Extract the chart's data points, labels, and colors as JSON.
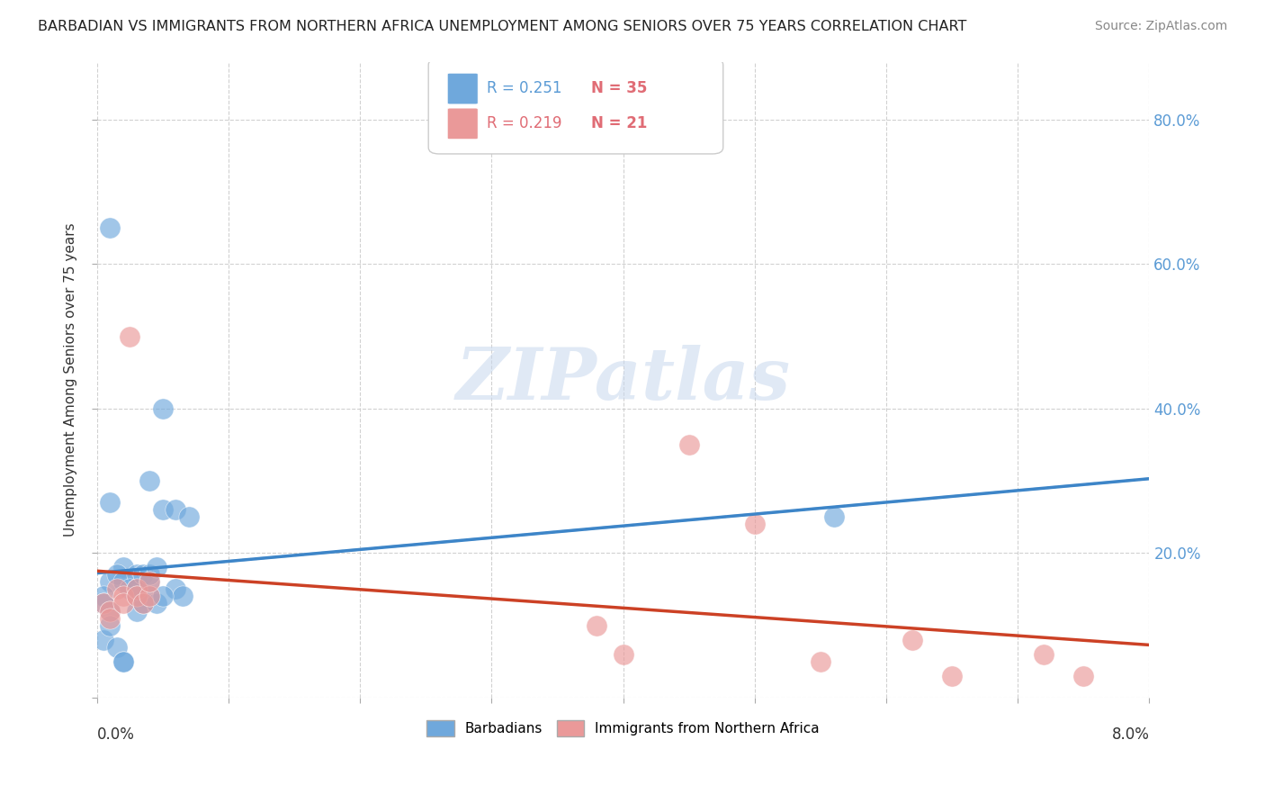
{
  "title": "BARBADIAN VS IMMIGRANTS FROM NORTHERN AFRICA UNEMPLOYMENT AMONG SENIORS OVER 75 YEARS CORRELATION CHART",
  "source": "Source: ZipAtlas.com",
  "ylabel": "Unemployment Among Seniors over 75 years",
  "right_yticks": [
    "80.0%",
    "60.0%",
    "40.0%",
    "20.0%"
  ],
  "right_ytick_vals": [
    0.8,
    0.6,
    0.4,
    0.2
  ],
  "xlim": [
    0.0,
    0.08
  ],
  "ylim": [
    0.0,
    0.88
  ],
  "legend_r1": "R = 0.251",
  "legend_n1": "N = 35",
  "legend_r2": "R = 0.219",
  "legend_n2": "N = 21",
  "barbadian_color": "#6fa8dc",
  "barbadian_line_color": "#3d85c8",
  "barbadian_dash_color": "#9fc5e8",
  "immigrant_color": "#ea9999",
  "immigrant_line_color": "#cc4125",
  "background_color": "#ffffff",
  "grid_color": "#cccccc",
  "watermark": "ZIPatlas",
  "barbadian_x": [
    0.001,
    0.004,
    0.001,
    0.001,
    0.0005,
    0.0005,
    0.001,
    0.002,
    0.0015,
    0.002,
    0.003,
    0.0025,
    0.003,
    0.003,
    0.0035,
    0.004,
    0.004,
    0.0045,
    0.005,
    0.005,
    0.006,
    0.006,
    0.0065,
    0.007,
    0.0005,
    0.001,
    0.0015,
    0.002,
    0.003,
    0.0035,
    0.004,
    0.0045,
    0.005,
    0.056,
    0.002
  ],
  "barbadian_y": [
    0.65,
    0.3,
    0.27,
    0.16,
    0.14,
    0.13,
    0.12,
    0.18,
    0.17,
    0.16,
    0.17,
    0.15,
    0.15,
    0.14,
    0.17,
    0.16,
    0.17,
    0.18,
    0.4,
    0.26,
    0.26,
    0.15,
    0.14,
    0.25,
    0.08,
    0.1,
    0.07,
    0.05,
    0.12,
    0.13,
    0.14,
    0.13,
    0.14,
    0.25,
    0.05
  ],
  "immigrant_x": [
    0.0005,
    0.001,
    0.001,
    0.0015,
    0.002,
    0.002,
    0.0025,
    0.003,
    0.003,
    0.0035,
    0.004,
    0.004,
    0.038,
    0.04,
    0.045,
    0.05,
    0.055,
    0.062,
    0.065,
    0.072,
    0.075
  ],
  "immigrant_y": [
    0.13,
    0.12,
    0.11,
    0.15,
    0.14,
    0.13,
    0.5,
    0.15,
    0.14,
    0.13,
    0.14,
    0.16,
    0.1,
    0.06,
    0.35,
    0.24,
    0.05,
    0.08,
    0.03,
    0.06,
    0.03
  ]
}
